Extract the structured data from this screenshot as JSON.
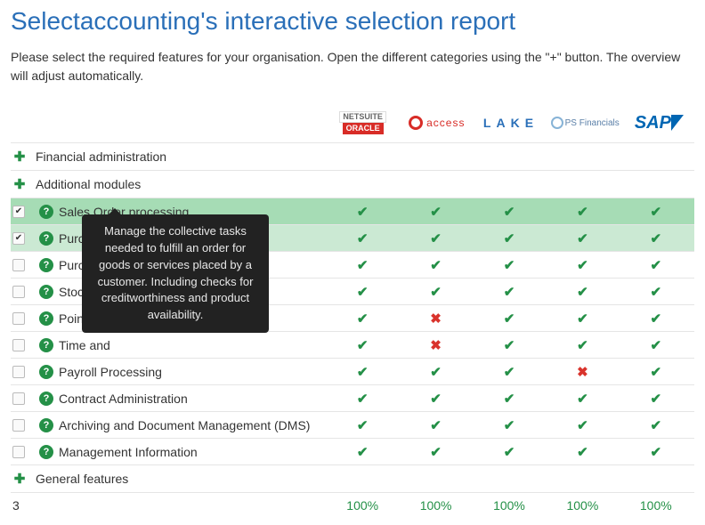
{
  "title": "Selectaccounting's interactive selection report",
  "intro": "Please select the required features for your organisation. Open the different categories using the \"+\" button. The overview will adjust automatically.",
  "vendors": [
    {
      "id": "netsuite"
    },
    {
      "id": "access",
      "label": "access"
    },
    {
      "id": "lake",
      "label": "LAKE"
    },
    {
      "id": "ps",
      "label": "PS Financials"
    },
    {
      "id": "sap",
      "label": "SAP"
    }
  ],
  "categories": [
    {
      "label": "Financial administration",
      "expanded": false
    },
    {
      "label": "Additional modules",
      "expanded": true
    },
    {
      "label": "General features",
      "expanded": false
    }
  ],
  "features": [
    {
      "label": "Sales Order processing",
      "checked": true,
      "highlight": "selected",
      "cells": [
        "y",
        "y",
        "y",
        "y",
        "y"
      ]
    },
    {
      "label": "Purch",
      "checked": true,
      "highlight": "sub-selected",
      "cells": [
        "y",
        "y",
        "y",
        "y",
        "y"
      ]
    },
    {
      "label": "Purch",
      "checked": false,
      "cells": [
        "y",
        "y",
        "y",
        "y",
        "y"
      ]
    },
    {
      "label": "Stock",
      "checked": false,
      "cells": [
        "y",
        "y",
        "y",
        "y",
        "y"
      ]
    },
    {
      "label": "Point of",
      "checked": false,
      "cells": [
        "y",
        "n",
        "y",
        "y",
        "y"
      ]
    },
    {
      "label": "Time and",
      "checked": false,
      "cells": [
        "y",
        "n",
        "y",
        "y",
        "y"
      ]
    },
    {
      "label": "Payroll Processing",
      "checked": false,
      "cells": [
        "y",
        "y",
        "y",
        "n",
        "y"
      ]
    },
    {
      "label": "Contract Administration",
      "checked": false,
      "cells": [
        "y",
        "y",
        "y",
        "y",
        "y"
      ]
    },
    {
      "label": "Archiving and Document Management (DMS)",
      "checked": false,
      "cells": [
        "y",
        "y",
        "y",
        "y",
        "y"
      ]
    },
    {
      "label": "Management Information",
      "checked": false,
      "cells": [
        "y",
        "y",
        "y",
        "y",
        "y"
      ]
    }
  ],
  "tooltip": "Manage the collective tasks needed to fulfill an order for goods or services placed by a customer. Including checks for creditworthiness and product availability.",
  "footer": {
    "count": "3",
    "pct": [
      "100%",
      "100%",
      "100%",
      "100%",
      "100%"
    ]
  },
  "glyphs": {
    "check": "✔",
    "cross": "✖",
    "plus": "✚",
    "q": "?"
  }
}
